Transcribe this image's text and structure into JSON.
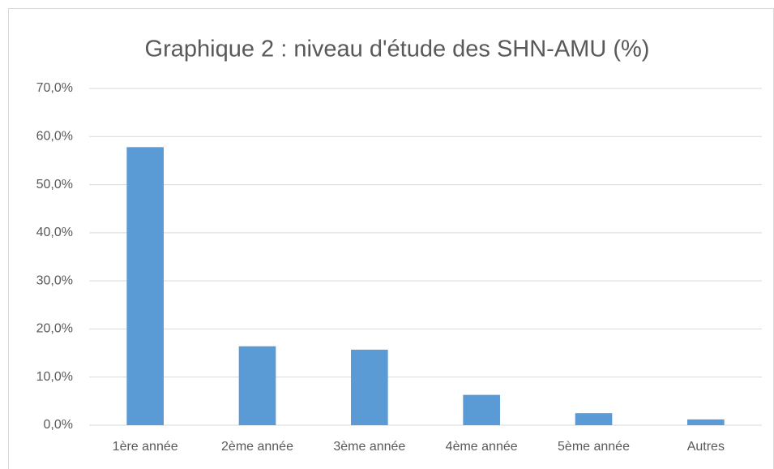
{
  "chart_data": {
    "type": "bar",
    "title": "Graphique 2 : niveau d'étude des SHN-AMU (%)",
    "categories": [
      "1ère année",
      "2ème année",
      "3ème année",
      "4ème année",
      "5ème année",
      "Autres"
    ],
    "values": [
      57.8,
      16.4,
      15.7,
      6.3,
      2.5,
      1.2
    ],
    "color": "#5b9bd5",
    "ylim": [
      0,
      70
    ],
    "yticks": [
      {
        "value": 0,
        "label": "0,0%"
      },
      {
        "value": 10,
        "label": "10,0%"
      },
      {
        "value": 20,
        "label": "20,0%"
      },
      {
        "value": 30,
        "label": "30,0%"
      },
      {
        "value": 40,
        "label": "40,0%"
      },
      {
        "value": 50,
        "label": "50,0%"
      },
      {
        "value": 60,
        "label": "60,0%"
      },
      {
        "value": 70,
        "label": "70,0%"
      }
    ],
    "grid": true
  }
}
